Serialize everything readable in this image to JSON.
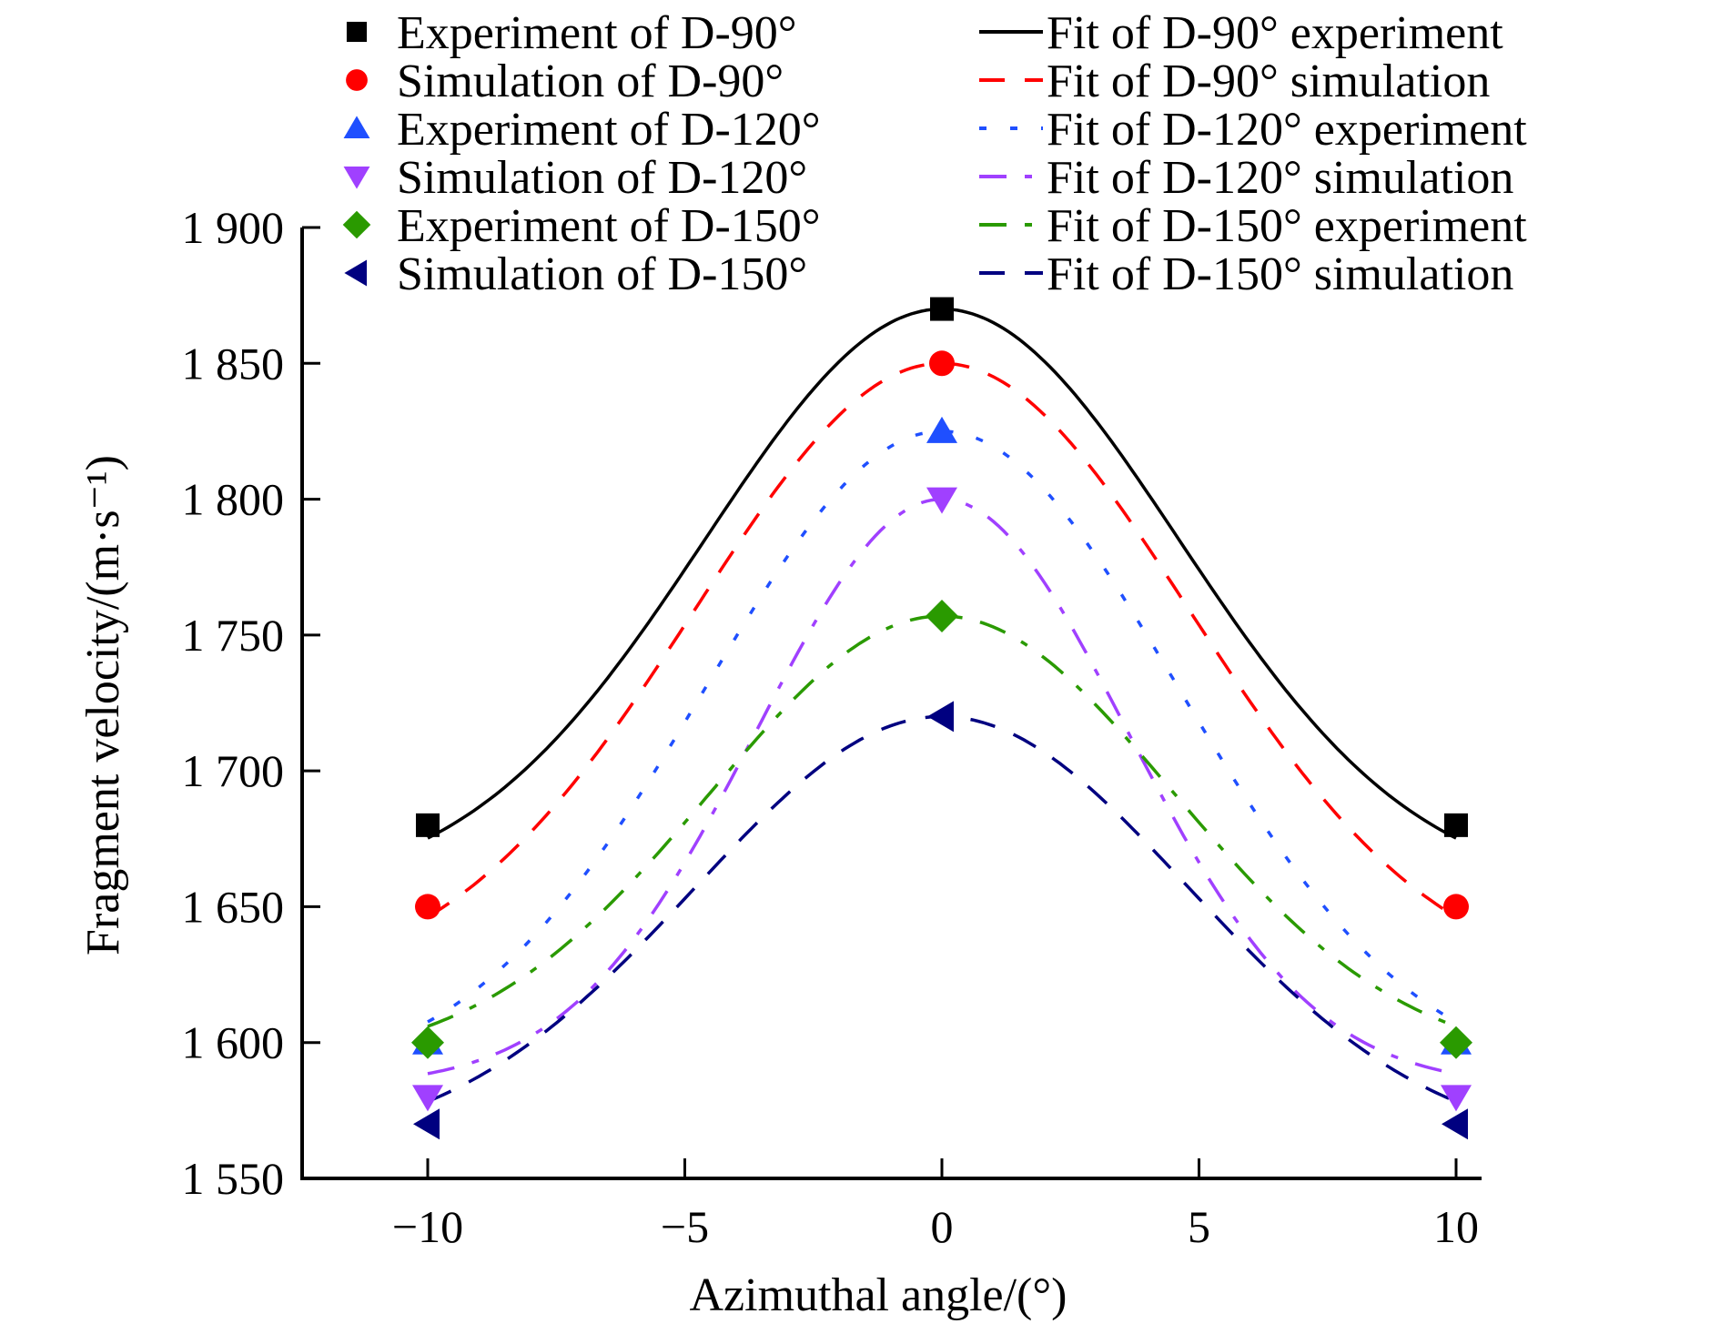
{
  "chart_data": {
    "type": "scatter",
    "title": "",
    "xlabel": "Azimuthal angle/(°)",
    "ylabel": "Fragment velocity/(m·s⁻¹)",
    "xlim": [
      -12.5,
      10.5
    ],
    "ylim": [
      1550,
      1900
    ],
    "xticks": [
      -10,
      -5,
      0,
      5,
      10
    ],
    "xtick_labels": [
      "−10",
      "−5",
      "0",
      "5",
      "10"
    ],
    "yticks": [
      1550,
      1600,
      1650,
      1700,
      1750,
      1800,
      1850,
      1900
    ],
    "ytick_labels": [
      "1 550",
      "1 600",
      "1 650",
      "1 700",
      "1 750",
      "1 800",
      "1 850",
      "1 900"
    ],
    "grid": false,
    "legend_position": "top",
    "series": [
      {
        "name": "Experiment of D-90°",
        "kind": "points",
        "marker": "square",
        "color": "#000000",
        "x": [
          -10,
          0,
          10
        ],
        "y": [
          1680,
          1870,
          1680
        ]
      },
      {
        "name": "Simulation of D-90°",
        "kind": "points",
        "marker": "circle",
        "color": "#ff0000",
        "x": [
          -10,
          0,
          10
        ],
        "y": [
          1650,
          1850,
          1650
        ]
      },
      {
        "name": "Experiment of D-120°",
        "kind": "points",
        "marker": "triangle-up",
        "color": "#1f4fff",
        "x": [
          -10,
          0,
          10
        ],
        "y": [
          1600,
          1825,
          1600
        ]
      },
      {
        "name": "Simulation of D-120°",
        "kind": "points",
        "marker": "triangle-down",
        "color": "#a040ff",
        "x": [
          -10,
          0,
          10
        ],
        "y": [
          1580,
          1800,
          1580
        ]
      },
      {
        "name": "Experiment of D-150°",
        "kind": "points",
        "marker": "diamond",
        "color": "#2a9a00",
        "x": [
          -10,
          0,
          10
        ],
        "y": [
          1600,
          1757,
          1600
        ]
      },
      {
        "name": "Simulation of D-150°",
        "kind": "points",
        "marker": "triangle-left",
        "color": "#000080",
        "x": [
          -10,
          0,
          10
        ],
        "y": [
          1570,
          1720,
          1570
        ]
      },
      {
        "name": "Fit of D-90° experiment",
        "kind": "fit",
        "dash": "solid",
        "color": "#000000",
        "base": 1655,
        "peak": 1870,
        "width": 4.6
      },
      {
        "name": "Fit of D-90° simulation",
        "kind": "fit",
        "dash": "dash",
        "color": "#ff0000",
        "base": 1620,
        "peak": 1850,
        "width": 4.8
      },
      {
        "name": "Fit of D-120° experiment",
        "kind": "fit",
        "dash": "dot",
        "color": "#1f4fff",
        "base": 1585,
        "peak": 1825,
        "width": 4.6
      },
      {
        "name": "Fit of D-120° simulation",
        "kind": "fit",
        "dash": "dashdot",
        "color": "#a040ff",
        "base": 1584,
        "peak": 1800,
        "width": 3.6
      },
      {
        "name": "Fit of D-150° experiment",
        "kind": "fit",
        "dash": "dashdot",
        "color": "#2a9a00",
        "base": 1592,
        "peak": 1757,
        "width": 4.5
      },
      {
        "name": "Fit of D-150° simulation",
        "kind": "fit",
        "dash": "dash",
        "color": "#000080",
        "base": 1560,
        "peak": 1720,
        "width": 4.8
      }
    ]
  }
}
